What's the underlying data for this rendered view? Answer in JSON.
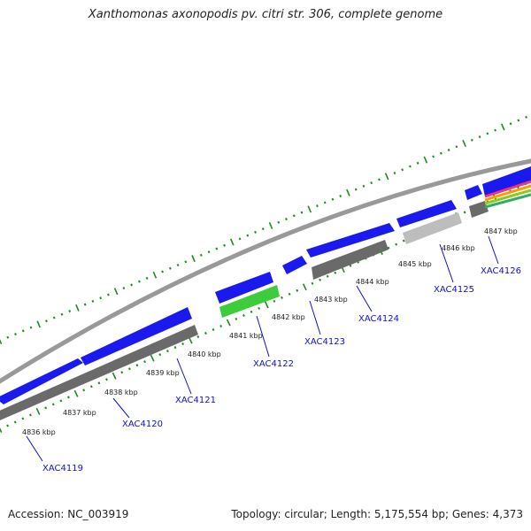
{
  "title": "Xanthomonas axonopodis pv. citri str. 306, complete genome",
  "footer": {
    "accession": "Accession: NC_003919",
    "summary": "Topology: circular; Length: 5,175,554 bp; Genes: 4,373"
  },
  "colors": {
    "background": "#ffffff",
    "backbone": "#999999",
    "forward_gene": "#1a1aee",
    "reverse_gene": "#6a6a6a",
    "rna_gene": "#3ccc3c",
    "pseudo_gene": "#bdbdbd",
    "tick": "#1f8a1f",
    "label": "#1010d0",
    "overlay_bands": [
      "#ee3377",
      "#ff9900",
      "#88cc22",
      "#33aa66"
    ]
  },
  "kbp_labels": [
    "4836 kbp",
    "4837 kbp",
    "4838 kbp",
    "4839 kbp",
    "4840 kbp",
    "4841 kbp",
    "4842 kbp",
    "4843 kbp",
    "4844 kbp",
    "4845 kbp",
    "4846 kbp",
    "4847 kbp"
  ],
  "gene_labels": [
    "XAC4119",
    "XAC4120",
    "XAC4121",
    "XAC4122",
    "XAC4123",
    "XAC4124",
    "XAC4125",
    "XAC4126"
  ]
}
